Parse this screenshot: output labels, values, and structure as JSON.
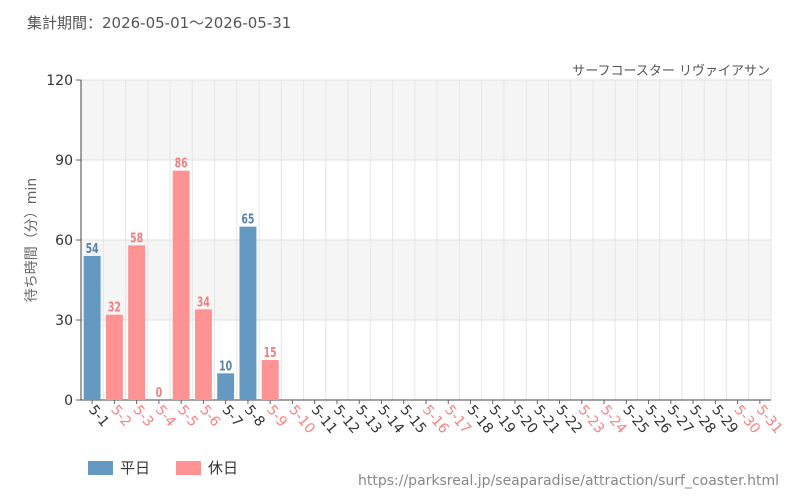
{
  "period_label": "集計期間：2026-05-01～2026-05-31",
  "attraction_label": "サーフコースター リヴァイアサン",
  "source_text": "https://parksreal.jp/seaparadise/attraction/surf_coaster.html",
  "colors": {
    "weekday": "#6699c2",
    "holiday": "#ff9393",
    "weekday_label": "#5b83a8",
    "holiday_label": "#f08080",
    "tick_weekday": "#333333",
    "tick_holiday": "#ff8080"
  },
  "legend": [
    {
      "key": "weekday",
      "label": "平日"
    },
    {
      "key": "holiday",
      "label": "休日"
    }
  ],
  "chart_data": {
    "type": "bar",
    "title": "サーフコースター リヴァイアサン",
    "ylabel": "待ち時間（分）min",
    "ylim": [
      0,
      120
    ],
    "yticks": [
      0,
      30,
      60,
      90,
      120
    ],
    "grid": true,
    "legend_position": "bottom-left",
    "categories": [
      "5-1",
      "5-2",
      "5-3",
      "5-4",
      "5-5",
      "5-6",
      "5-7",
      "5-8",
      "5-9",
      "5-10",
      "5-11",
      "5-12",
      "5-13",
      "5-14",
      "5-15",
      "5-16",
      "5-17",
      "5-18",
      "5-19",
      "5-20",
      "5-21",
      "5-22",
      "5-23",
      "5-24",
      "5-25",
      "5-26",
      "5-27",
      "5-28",
      "5-29",
      "5-30",
      "5-31"
    ],
    "day_type": [
      "weekday",
      "holiday",
      "holiday",
      "holiday",
      "holiday",
      "holiday",
      "weekday",
      "weekday",
      "holiday",
      "holiday",
      "weekday",
      "weekday",
      "weekday",
      "weekday",
      "weekday",
      "holiday",
      "holiday",
      "weekday",
      "weekday",
      "weekday",
      "weekday",
      "weekday",
      "holiday",
      "holiday",
      "weekday",
      "weekday",
      "weekday",
      "weekday",
      "weekday",
      "holiday",
      "holiday"
    ],
    "values": [
      54,
      32,
      58,
      0,
      86,
      34,
      10,
      65,
      15,
      null,
      null,
      null,
      null,
      null,
      null,
      null,
      null,
      null,
      null,
      null,
      null,
      null,
      null,
      null,
      null,
      null,
      null,
      null,
      null,
      null,
      null
    ]
  }
}
